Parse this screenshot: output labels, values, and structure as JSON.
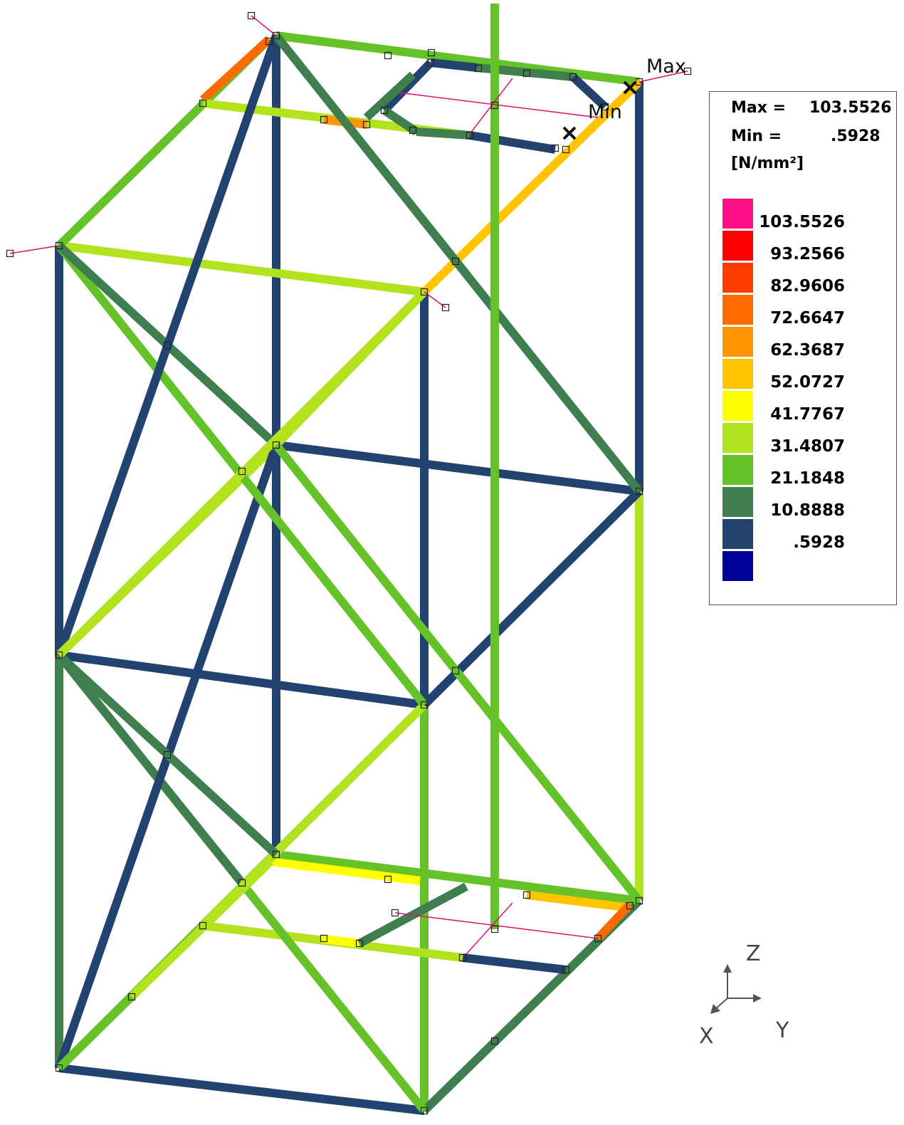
{
  "legend": {
    "max_label": "Max =",
    "max_value": "103.5526",
    "min_label": "Min =",
    "min_value": ".5928",
    "unit": "[N/mm²]",
    "scale": [
      {
        "label": "103.5526",
        "color": "#ff0e87"
      },
      {
        "label": "93.2566",
        "color": "#ff0000"
      },
      {
        "label": "82.9606",
        "color": "#ff3c00"
      },
      {
        "label": "72.6647",
        "color": "#ff6a00"
      },
      {
        "label": "62.3687",
        "color": "#ff9500"
      },
      {
        "label": "52.0727",
        "color": "#ffc400"
      },
      {
        "label": "41.7767",
        "color": "#ffff00"
      },
      {
        "label": "31.4807",
        "color": "#b3e21e"
      },
      {
        "label": "21.1848",
        "color": "#66c229"
      },
      {
        "label": "10.8888",
        "color": "#3f7f4f"
      },
      {
        "label": ".5928",
        "color": "#224370"
      },
      {
        "label": "",
        "color": "#00009a"
      }
    ]
  },
  "markers": {
    "max": "Max",
    "min": "Min"
  },
  "axes": {
    "z": "Z",
    "y": "Y",
    "x": "X",
    "color": "#555555"
  },
  "frame": {
    "bg": "#ffffff",
    "node_color": "#222222",
    "leader_color": "#e0116e"
  }
}
